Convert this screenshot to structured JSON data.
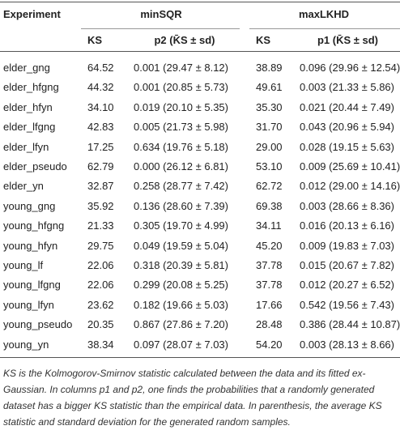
{
  "table": {
    "header": {
      "experiment": "Experiment",
      "group1": "minSQR",
      "group2": "maxLKHD",
      "columns": [
        "KS",
        "p2 (K̄S ± sd)",
        "KS",
        "p1 (K̄S ± sd)"
      ]
    },
    "rows": [
      [
        "elder_gng",
        "64.52",
        "0.001 (29.47 ± 8.12)",
        "38.89",
        "0.096 (29.96 ± 12.54)"
      ],
      [
        "elder_hfgng",
        "44.32",
        "0.001 (20.85 ± 5.73)",
        "49.61",
        "0.003 (21.33 ± 5.86)"
      ],
      [
        "elder_hfyn",
        "34.10",
        "0.019 (20.10 ± 5.35)",
        "35.30",
        "0.021 (20.44 ± 7.49)"
      ],
      [
        "elder_lfgng",
        "42.83",
        "0.005 (21.73 ± 5.98)",
        "31.70",
        "0.043 (20.96 ± 5.94)"
      ],
      [
        "elder_lfyn",
        "17.25",
        "0.634 (19.76 ± 5.18)",
        "29.00",
        "0.028 (19.15 ± 5.63)"
      ],
      [
        "elder_pseudo",
        "62.79",
        "0.000 (26.12 ± 6.81)",
        "53.10",
        "0.009 (25.69 ± 10.41)"
      ],
      [
        "elder_yn",
        "32.87",
        "0.258 (28.77 ± 7.42)",
        "62.72",
        "0.012 (29.00 ± 14.16)"
      ],
      [
        "young_gng",
        "35.92",
        "0.136 (28.60 ± 7.39)",
        "69.38",
        "0.003 (28.66 ± 8.36)"
      ],
      [
        "young_hfgng",
        "21.33",
        "0.305 (19.70 ± 4.99)",
        "34.11",
        "0.016 (20.13 ± 6.16)"
      ],
      [
        "young_hfyn",
        "29.75",
        "0.049 (19.59 ± 5.04)",
        "45.20",
        "0.009 (19.83 ± 7.03)"
      ],
      [
        "young_lf",
        "22.06",
        "0.318 (20.39 ± 5.81)",
        "37.78",
        "0.015 (20.67 ± 7.82)"
      ],
      [
        "young_lfgng",
        "22.06",
        "0.299 (20.08 ± 5.25)",
        "37.78",
        "0.012 (20.27 ± 6.52)"
      ],
      [
        "young_lfyn",
        "23.62",
        "0.182 (19.66 ± 5.03)",
        "17.66",
        "0.542 (19.56 ± 7.43)"
      ],
      [
        "young_pseudo",
        "20.35",
        "0.867 (27.86 ± 7.20)",
        "28.48",
        "0.386 (28.44 ± 10.87)"
      ],
      [
        "young_yn",
        "38.34",
        "0.097 (28.07 ± 7.03)",
        "54.20",
        "0.003 (28.13 ± 8.66)"
      ]
    ]
  },
  "footnote": "KS is the Kolmogorov-Smirnov statistic calculated between the data and its fitted ex-Gaussian. In columns p1 and p2, one finds the probabilities that a randomly generated dataset has a bigger KS statistic than the empirical data. In parenthesis, the average KS statistic and standard deviation for the generated random samples."
}
